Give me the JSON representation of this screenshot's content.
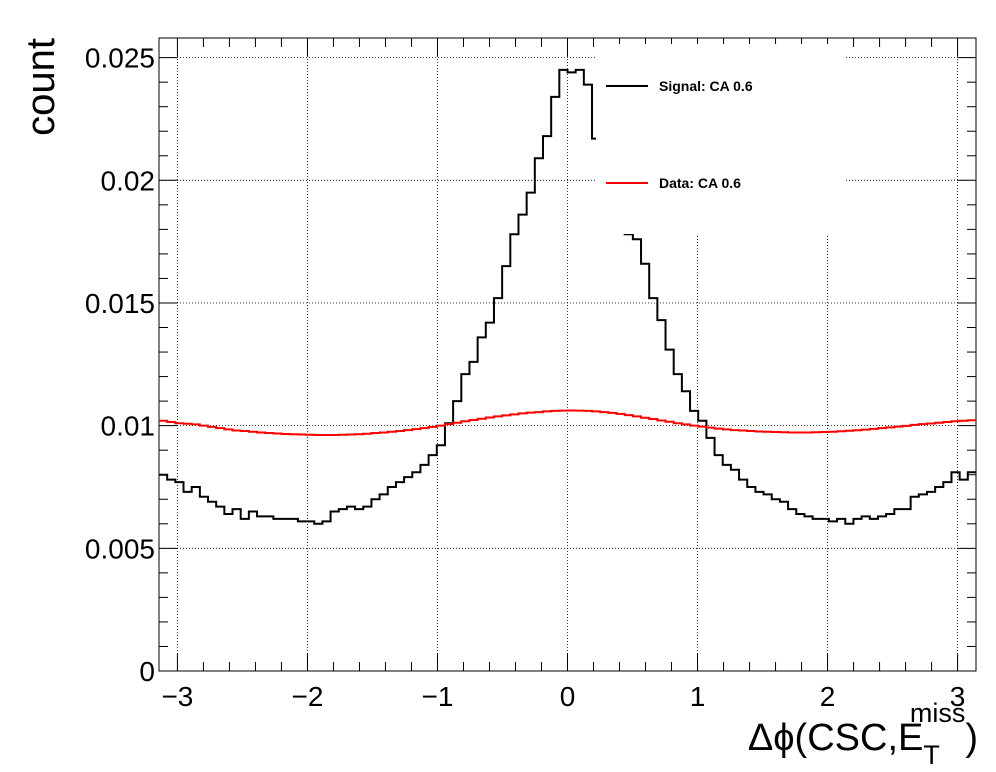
{
  "chart_data": {
    "type": "line",
    "step": true,
    "ylabel": "count",
    "xlabel_parts": {
      "prefix": "Δϕ(CSC,E",
      "subscript": "T",
      "superscript": "miss",
      "suffix": ")"
    },
    "xlim": [
      -3.1416,
      3.1416
    ],
    "ylim": [
      0,
      0.0258
    ],
    "x_ticks": [
      -3,
      -2,
      -1,
      0,
      1,
      2,
      3
    ],
    "x_tick_labels": [
      "−3",
      "−2",
      "−1",
      "0",
      "1",
      "2",
      "3"
    ],
    "y_ticks": [
      0,
      0.005,
      0.01,
      0.015,
      0.02,
      0.025
    ],
    "y_tick_labels": [
      "0",
      "0.005",
      "0.01",
      "0.015",
      "0.02",
      "0.025"
    ],
    "grid": true,
    "legend_position": "top-right",
    "bins": 100,
    "series": [
      {
        "name": "Signal: CA 0.6",
        "color": "#000000",
        "values": [
          0.008,
          0.0078,
          0.0077,
          0.0073,
          0.0075,
          0.0071,
          0.0069,
          0.0067,
          0.0064,
          0.0066,
          0.0062,
          0.0065,
          0.0063,
          0.0063,
          0.0062,
          0.0062,
          0.0062,
          0.0061,
          0.0061,
          0.006,
          0.0061,
          0.0065,
          0.0066,
          0.0067,
          0.0066,
          0.0067,
          0.007,
          0.0072,
          0.0075,
          0.0077,
          0.0079,
          0.0081,
          0.0084,
          0.0088,
          0.0092,
          0.0101,
          0.011,
          0.0121,
          0.0126,
          0.0136,
          0.0142,
          0.0152,
          0.0165,
          0.0178,
          0.0186,
          0.0195,
          0.0209,
          0.0218,
          0.0234,
          0.0245,
          0.0244,
          0.0245,
          0.0239,
          0.0217,
          0.0215,
          0.0197,
          0.0186,
          0.0178,
          0.0176,
          0.0166,
          0.0152,
          0.0143,
          0.0131,
          0.0121,
          0.0114,
          0.0106,
          0.0102,
          0.0095,
          0.0088,
          0.0084,
          0.0082,
          0.0078,
          0.0075,
          0.0073,
          0.0072,
          0.007,
          0.0069,
          0.0066,
          0.0064,
          0.0063,
          0.0062,
          0.0062,
          0.0061,
          0.0062,
          0.006,
          0.0062,
          0.0063,
          0.0062,
          0.0063,
          0.0064,
          0.0066,
          0.0066,
          0.0071,
          0.0072,
          0.0073,
          0.0075,
          0.0077,
          0.0081,
          0.0078,
          0.0081
        ]
      },
      {
        "name": "Data: CA 0.6",
        "color": "#ff0000",
        "values": [
          0.0102,
          0.01015,
          0.0101,
          0.01008,
          0.01005,
          0.01,
          0.00995,
          0.0099,
          0.00985,
          0.0098,
          0.00978,
          0.00975,
          0.00972,
          0.0097,
          0.00968,
          0.00966,
          0.00965,
          0.00964,
          0.00963,
          0.00962,
          0.00962,
          0.00962,
          0.00963,
          0.00964,
          0.00965,
          0.00967,
          0.0097,
          0.00972,
          0.00975,
          0.00978,
          0.00982,
          0.00986,
          0.0099,
          0.00995,
          0.01,
          0.01006,
          0.01012,
          0.01018,
          0.01023,
          0.01028,
          0.01033,
          0.01038,
          0.01042,
          0.01046,
          0.0105,
          0.01053,
          0.01055,
          0.01058,
          0.0106,
          0.01061,
          0.01062,
          0.01061,
          0.0106,
          0.01058,
          0.01055,
          0.01052,
          0.01048,
          0.01043,
          0.01038,
          0.01032,
          0.01027,
          0.01021,
          0.01016,
          0.0101,
          0.01005,
          0.01,
          0.00996,
          0.00992,
          0.00988,
          0.00985,
          0.00982,
          0.0098,
          0.00978,
          0.00976,
          0.00975,
          0.00974,
          0.00973,
          0.00972,
          0.00972,
          0.00972,
          0.00973,
          0.00974,
          0.00975,
          0.00977,
          0.00979,
          0.00981,
          0.00984,
          0.00987,
          0.0099,
          0.00993,
          0.00996,
          0.00999,
          0.01003,
          0.01006,
          0.01009,
          0.01012,
          0.01015,
          0.01018,
          0.0102,
          0.01022
        ]
      }
    ]
  }
}
